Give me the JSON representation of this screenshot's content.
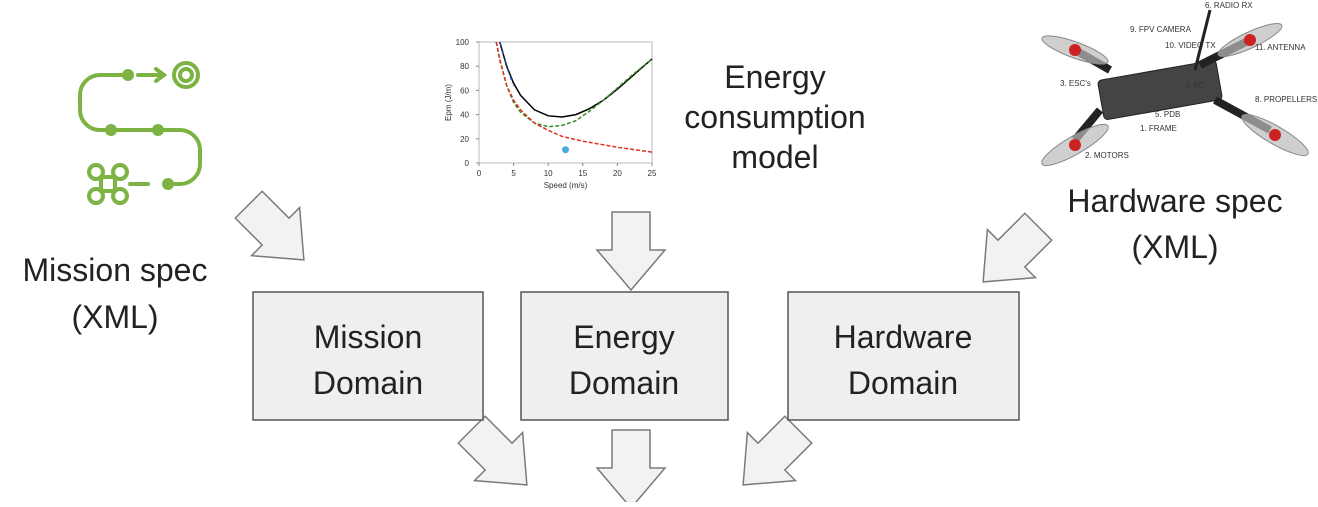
{
  "mission_spec": {
    "lines": [
      "Mission spec",
      "(XML)"
    ]
  },
  "energy_model": {
    "lines": [
      "Energy",
      "consumption",
      "model"
    ]
  },
  "hardware_spec": {
    "lines": [
      "Hardware spec",
      "(XML)"
    ]
  },
  "domains": [
    {
      "lines": [
        "Mission",
        "Domain"
      ]
    },
    {
      "lines": [
        "Energy",
        "Domain"
      ]
    },
    {
      "lines": [
        "Hardware",
        "Domain"
      ]
    }
  ],
  "drone_labels": [
    "6. RADIO RX",
    "9. FPV CAMERA",
    "10. VIDEO TX",
    "11. ANTENNA",
    "3. ESC's",
    "4. FC",
    "8. PROPELLERS",
    "5. PDB",
    "1. FRAME",
    "2. MOTORS"
  ],
  "chart_data": {
    "type": "line",
    "xlabel": "Speed (m/s)",
    "ylabel": "Epm (J/m)",
    "xlim": [
      0,
      25
    ],
    "ylim": [
      0,
      100
    ],
    "xticks": [
      0,
      5,
      10,
      15,
      20,
      25
    ],
    "yticks": [
      0,
      20,
      40,
      60,
      80,
      100
    ],
    "series": [
      {
        "color": "#000000",
        "dash": "none",
        "x": [
          3,
          4,
          5,
          6,
          8,
          10,
          12,
          14,
          16,
          18,
          20,
          22,
          25
        ],
        "values": [
          100,
          80,
          66,
          56,
          44,
          39,
          38,
          40,
          45,
          52,
          61,
          71,
          86
        ]
      },
      {
        "color": "#3a8a2a",
        "dash": "4 2",
        "x": [
          2.5,
          3,
          4,
          5,
          6,
          8,
          10,
          12,
          14,
          16,
          18,
          20,
          22,
          25
        ],
        "values": [
          100,
          86,
          64,
          50,
          42,
          33,
          30,
          31,
          35,
          43,
          52,
          62,
          72,
          86
        ]
      },
      {
        "color": "#2040a0",
        "dash": "4 2 1 2",
        "x": [
          3,
          3.5,
          4,
          4.5,
          5
        ],
        "values": [
          100,
          90,
          80,
          72,
          64
        ]
      },
      {
        "color": "#e03020",
        "dash": "4 2",
        "x": [
          2.5,
          3,
          4,
          5,
          6,
          8,
          10,
          12,
          15,
          20,
          25
        ],
        "values": [
          100,
          85,
          64,
          52,
          44,
          33,
          27,
          22,
          18,
          13,
          9
        ]
      }
    ],
    "point": {
      "color": "#4aa8e0",
      "x": 12.5,
      "value": 11
    }
  }
}
